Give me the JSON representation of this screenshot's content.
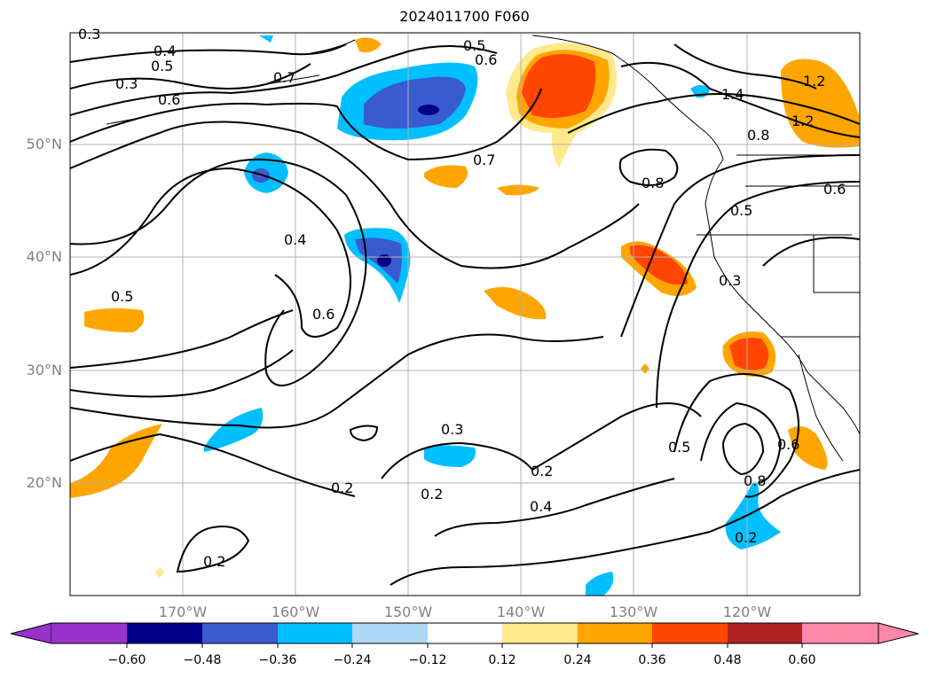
{
  "title": "2024011700 F060",
  "map": {
    "lat_labels": [
      "50°N",
      "40°N",
      "30°N",
      "20°N"
    ],
    "lon_labels": [
      "170°W",
      "160°W",
      "150°W",
      "140°W",
      "130°W",
      "120°W"
    ],
    "contour_labels": [
      "0.3",
      "0.4",
      "0.5",
      "0.5",
      "0.6",
      "0.6",
      "0.7",
      "0.7",
      "0.8",
      "0.8",
      "1.2",
      "1.2",
      "1.4",
      "0.6",
      "0.5",
      "0.4",
      "0.6",
      "0.3",
      "0.5",
      "0.3",
      "0.3",
      "0.2",
      "0.2",
      "0.4",
      "0.2",
      "0.2",
      "0.5",
      "0.6",
      "0.8",
      "0.2"
    ]
  },
  "colorbar": {
    "tick_labels": [
      "−0.60",
      "−0.48",
      "−0.36",
      "−0.24",
      "−0.12",
      "0.12",
      "0.24",
      "0.36",
      "0.48",
      "0.60"
    ],
    "colors": [
      "#9932cc",
      "#00008b",
      "#3a5bcf",
      "#00bfff",
      "#add8f5",
      "#ffffff",
      "#ffe98a",
      "#ffa500",
      "#ff4500",
      "#b22222",
      "#ff88aa"
    ]
  }
}
